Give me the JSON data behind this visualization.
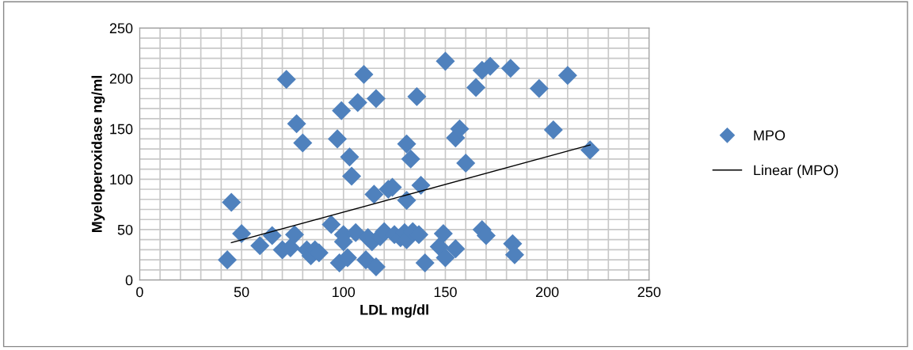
{
  "chart_data": {
    "type": "scatter",
    "xlabel": "LDL mg/dl",
    "ylabel": "Myeloperoxidase ng/ml",
    "x": [
      43,
      45,
      50,
      59,
      65,
      70,
      72,
      74,
      76,
      77,
      80,
      82,
      84,
      86,
      88,
      94,
      97,
      98,
      99,
      100,
      100,
      102,
      103,
      104,
      106,
      107,
      110,
      111,
      112,
      114,
      115,
      116,
      116,
      118,
      120,
      122,
      124,
      125,
      128,
      130,
      131,
      131,
      131,
      133,
      134,
      136,
      137,
      138,
      140,
      147,
      149,
      150,
      150,
      155,
      155,
      157,
      160,
      165,
      168,
      168,
      170,
      172,
      182,
      183,
      184,
      196,
      203,
      210,
      221
    ],
    "series": [
      {
        "name": "MPO",
        "color": "#4f81bd",
        "marker": "diamond",
        "values": [
          20,
          77,
          46,
          34,
          44,
          30,
          199,
          32,
          45,
          155,
          136,
          30,
          24,
          30,
          27,
          55,
          140,
          17,
          168,
          45,
          38,
          22,
          122,
          103,
          47,
          176,
          204,
          20,
          42,
          38,
          85,
          180,
          13,
          43,
          48,
          90,
          92,
          45,
          42,
          47,
          40,
          79,
          135,
          120,
          48,
          182,
          45,
          94,
          17,
          33,
          46,
          217,
          22,
          31,
          141,
          150,
          116,
          191,
          208,
          50,
          44,
          212,
          210,
          36,
          25,
          190,
          149,
          203,
          129
        ]
      },
      {
        "name": "Linear (MPO)",
        "type": "line",
        "color": "#000000",
        "marker": "none",
        "line_style": "solid",
        "x": [
          45,
          221
        ],
        "values": [
          37,
          134
        ]
      }
    ],
    "xlim": [
      0,
      250
    ],
    "ylim": [
      0,
      250
    ],
    "xticks": [
      0,
      {
        "value": 10,
        "label": null
      },
      {
        "value": 20,
        "label": null
      },
      {
        "value": 30,
        "label": null
      },
      {
        "value": 40,
        "label": null
      },
      50,
      {
        "value": 60,
        "label": null
      },
      {
        "value": 70,
        "label": null
      },
      {
        "value": 80,
        "label": null
      },
      {
        "value": 90,
        "label": null
      },
      100,
      {
        "value": 110,
        "label": null
      },
      {
        "value": 120,
        "label": null
      },
      {
        "value": 130,
        "label": null
      },
      {
        "value": 140,
        "label": null
      },
      150,
      {
        "value": 160,
        "label": null
      },
      {
        "value": 170,
        "label": null
      },
      {
        "value": 180,
        "label": null
      },
      {
        "value": 190,
        "label": null
      },
      200,
      {
        "value": 210,
        "label": null
      },
      {
        "value": 220,
        "label": null
      },
      {
        "value": 230,
        "label": null
      },
      {
        "value": 240,
        "label": null
      },
      250
    ],
    "yticks": [
      0,
      {
        "value": 10,
        "label": null
      },
      {
        "value": 20,
        "label": null
      },
      {
        "value": 30,
        "label": null
      },
      {
        "value": 40,
        "label": null
      },
      50,
      {
        "value": 60,
        "label": null
      },
      {
        "value": 70,
        "label": null
      },
      {
        "value": 80,
        "label": null
      },
      {
        "value": 90,
        "label": null
      },
      100,
      {
        "value": 110,
        "label": null
      },
      {
        "value": 120,
        "label": null
      },
      {
        "value": 130,
        "label": null
      },
      {
        "value": 140,
        "label": null
      },
      150,
      {
        "value": 160,
        "label": null
      },
      {
        "value": 170,
        "label": null
      },
      {
        "value": 180,
        "label": null
      },
      {
        "value": 190,
        "label": null
      },
      200,
      {
        "value": 210,
        "label": null
      },
      {
        "value": 220,
        "label": null
      },
      {
        "value": 230,
        "label": null
      },
      {
        "value": 240,
        "label": null
      },
      250
    ],
    "grid": true,
    "legend": "right"
  }
}
